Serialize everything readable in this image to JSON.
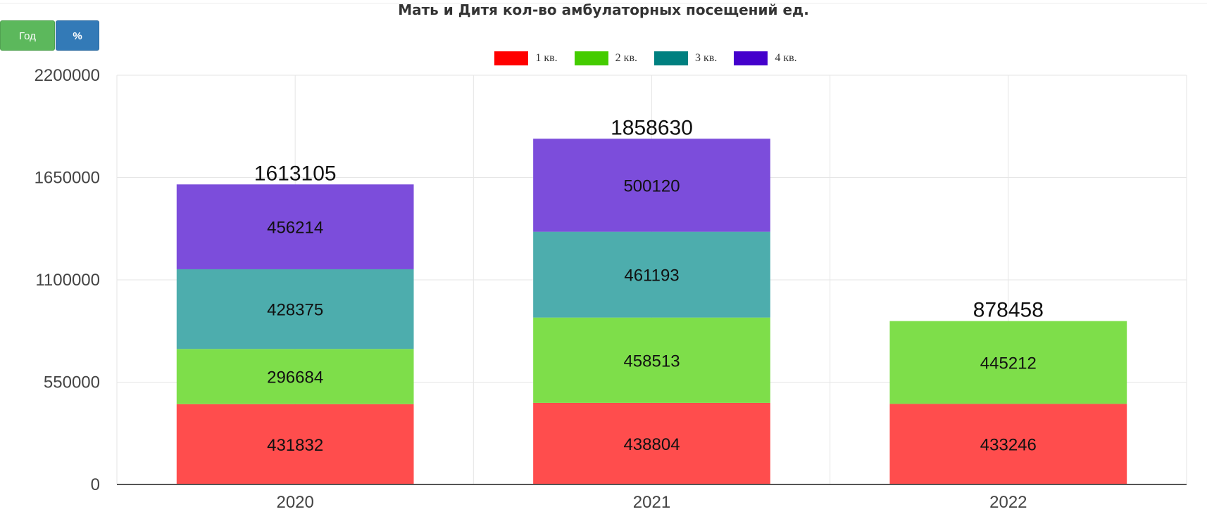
{
  "buttons": {
    "year_label": "Год",
    "percent_label": "%"
  },
  "chart_data": {
    "type": "bar",
    "stacked": true,
    "title": "Мать и Дитя кол-во амбулаторных посещений ед.",
    "xlabel": "",
    "ylabel": "",
    "ylim": [
      0,
      2200000
    ],
    "yticks": [
      "0",
      "550000",
      "1100000",
      "1650000",
      "2200000"
    ],
    "grid": true,
    "legend_position": "top-center",
    "categories": [
      "2020",
      "2021",
      "2022"
    ],
    "series": [
      {
        "name": "1 кв.",
        "legend_color": "#ff0000",
        "color": "#ff4d4d",
        "values": [
          431832,
          438804,
          433246
        ]
      },
      {
        "name": "2 кв.",
        "legend_color": "#44cc00",
        "color": "#7ede4a",
        "values": [
          296684,
          458513,
          445212
        ]
      },
      {
        "name": "3 кв.",
        "legend_color": "#008080",
        "color": "#4dadad",
        "values": [
          428375,
          461193,
          null
        ]
      },
      {
        "name": "4 кв.",
        "legend_color": "#4400cc",
        "color": "#7c4ddb",
        "values": [
          456214,
          500120,
          null
        ]
      }
    ],
    "totals": [
      1613105,
      1858630,
      878458
    ]
  }
}
